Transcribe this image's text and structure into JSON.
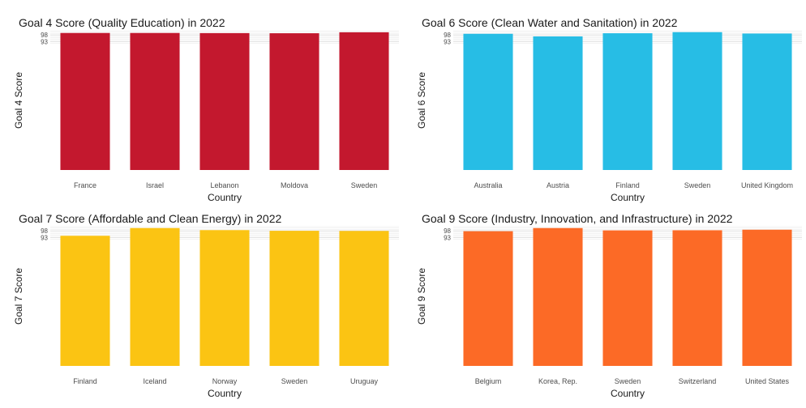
{
  "chart_data": [
    {
      "type": "bar",
      "title": "Goal 4 Score (Quality Education) in 2022",
      "xlabel": "Country",
      "ylabel": "Goal 4 Score",
      "categories": [
        "France",
        "Israel",
        "Lebanon",
        "Moldova",
        "Sweden"
      ],
      "values": [
        99.4,
        99.4,
        99.3,
        99.2,
        99.9
      ],
      "yticks": [
        93,
        98
      ],
      "ylim": [
        0,
        101
      ],
      "color": "#C3182E",
      "grid": true
    },
    {
      "type": "bar",
      "title": "Goal 6 Score (Clean Water and Sanitation) in 2022",
      "xlabel": "Country",
      "ylabel": "Goal 6 Score",
      "categories": [
        "Australia",
        "Austria",
        "Finland",
        "Sweden",
        "United Kingdom"
      ],
      "values": [
        98.8,
        96.9,
        99.2,
        100.0,
        99.0
      ],
      "yticks": [
        93,
        98
      ],
      "ylim": [
        0,
        101
      ],
      "color": "#27BDE5",
      "grid": true
    },
    {
      "type": "bar",
      "title": "Goal 7 Score (Affordable and Clean Energy) in 2022",
      "xlabel": "Country",
      "ylabel": "Goal 7 Score",
      "categories": [
        "Finland",
        "Iceland",
        "Norway",
        "Sweden",
        "Uruguay"
      ],
      "values": [
        94.4,
        100.0,
        98.5,
        98.0,
        97.9
      ],
      "yticks": [
        93,
        98
      ],
      "ylim": [
        0,
        101
      ],
      "color": "#FBC413",
      "grid": true
    },
    {
      "type": "bar",
      "title": "Goal 9 Score (Industry, Innovation, and Infrastructure) in 2022",
      "xlabel": "Country",
      "ylabel": "Goal 9 Score",
      "categories": [
        "Belgium",
        "Korea, Rep.",
        "Sweden",
        "Switzerland",
        "United States"
      ],
      "values": [
        97.7,
        100.0,
        98.3,
        98.4,
        98.8
      ],
      "yticks": [
        93,
        98
      ],
      "ylim": [
        0,
        101
      ],
      "color": "#FC6A26",
      "grid": true
    }
  ]
}
